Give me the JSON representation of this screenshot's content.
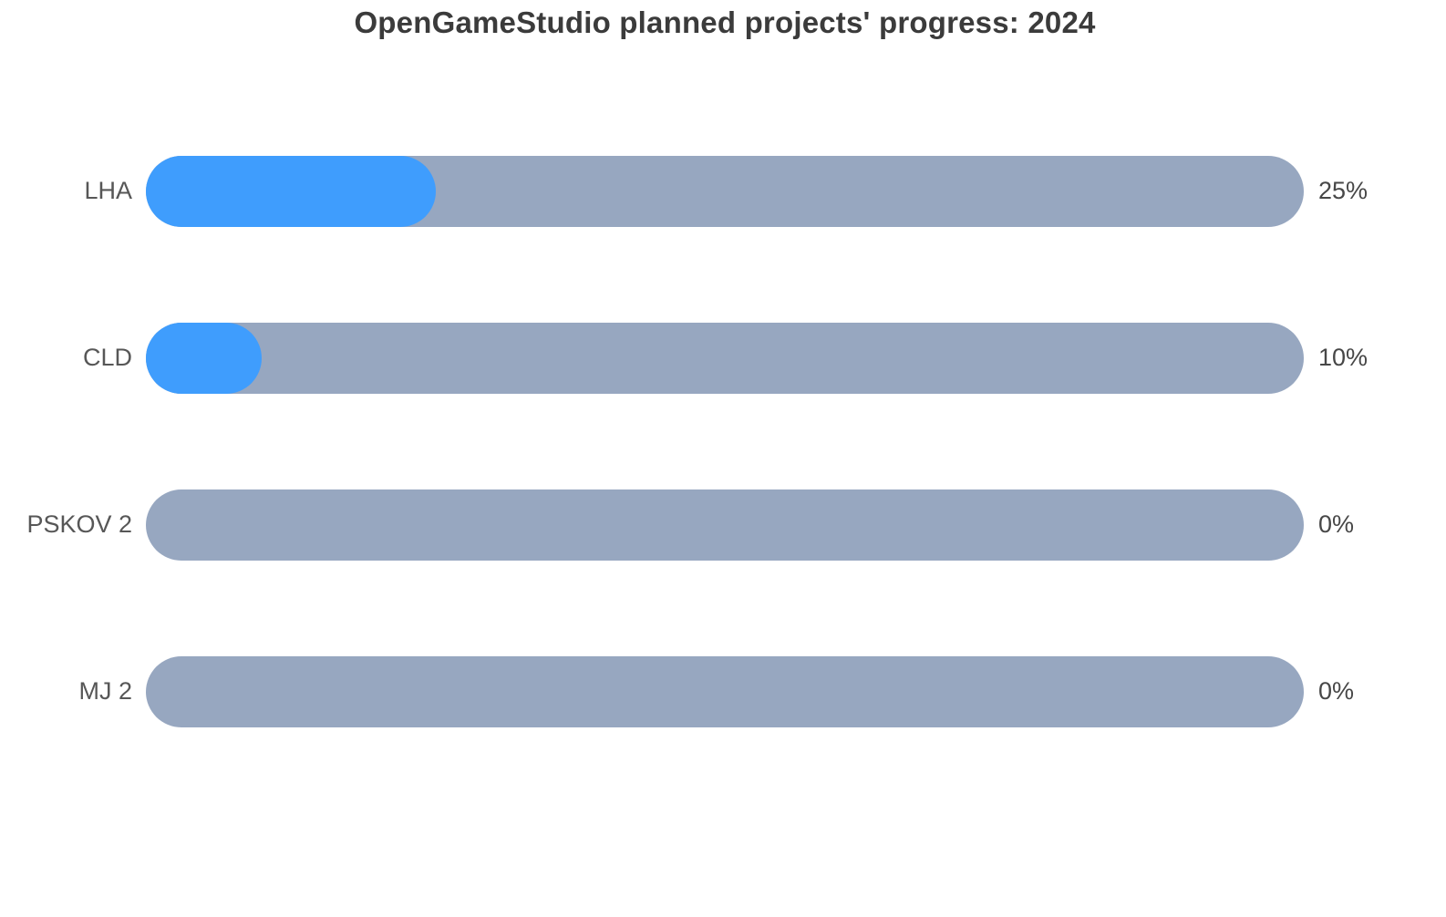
{
  "chart_data": {
    "type": "bar",
    "orientation": "horizontal",
    "title": "OpenGameStudio planned projects' progress: 2024",
    "categories": [
      "LHA",
      "CLD",
      "PSKOV 2",
      "MJ 2"
    ],
    "values": [
      25,
      10,
      0,
      0
    ],
    "value_labels": [
      "25%",
      "10%",
      "0%",
      "0%"
    ],
    "xlim": [
      0,
      100
    ],
    "grid": false,
    "legend": false,
    "colors": {
      "bar_fill": "#3f9dfd",
      "bar_track": "#97a7c0",
      "title_text": "#3b3b3b",
      "label_text": "#575757",
      "value_text": "#474747",
      "background": "#ffffff"
    }
  }
}
